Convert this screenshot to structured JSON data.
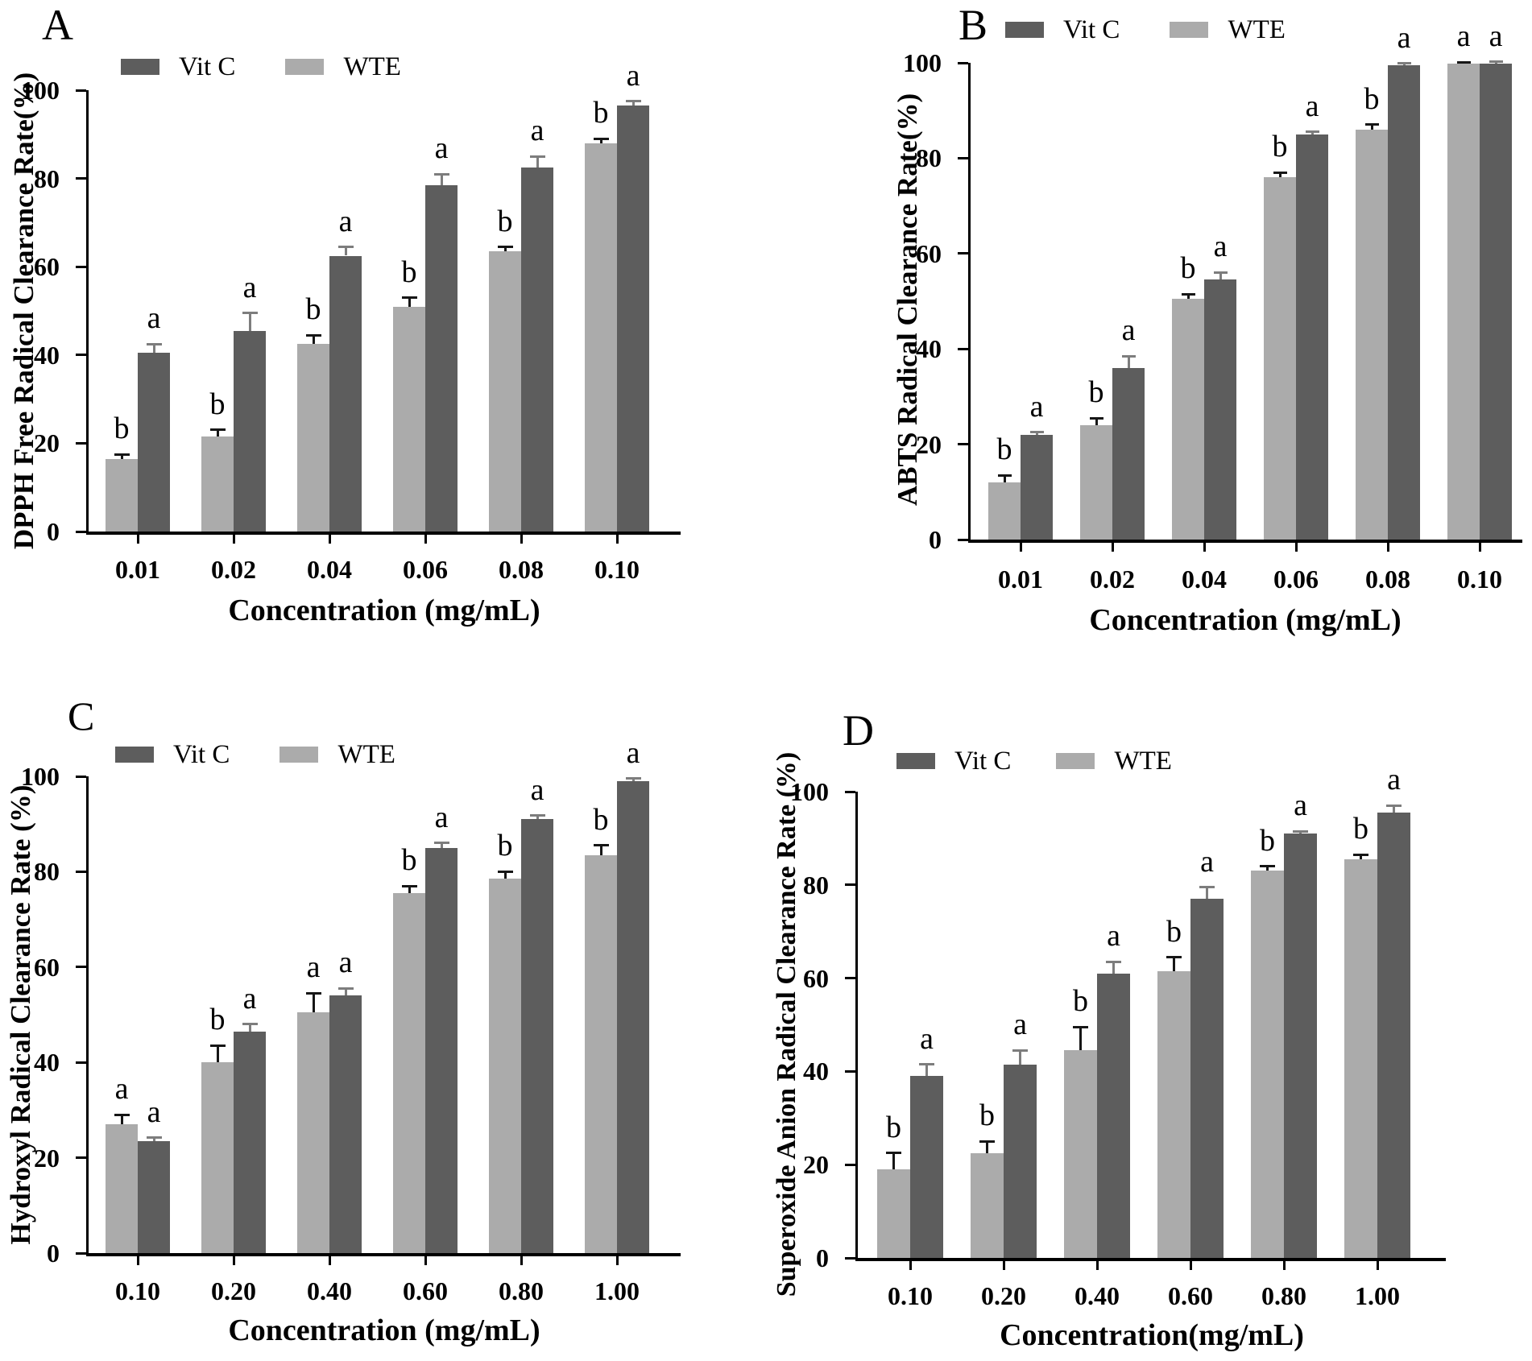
{
  "colors": {
    "vitc_bar": "#5d5d5d",
    "wte_bar": "#ababab",
    "vitc_error": "#7d7d7d",
    "wte_error": "#161616",
    "axis": "#000000",
    "background": "#ffffff"
  },
  "legend": {
    "vitc_label": "Vit C",
    "wte_label": "WTE",
    "position": "top"
  },
  "chart_data": [
    {
      "panel": "A",
      "type": "bar",
      "title_letter": "A",
      "ylabel": "DPPH Free Radical Clearance Rate(%)",
      "xlabel": "Concentration (mg/mL)",
      "categories": [
        "0.01",
        "0.02",
        "0.04",
        "0.06",
        "0.08",
        "0.10"
      ],
      "ylim": [
        0,
        100
      ],
      "yticks": [
        0,
        20,
        40,
        60,
        80,
        100
      ],
      "grid": "off",
      "series": [
        {
          "name": "WTE",
          "values": [
            16.5,
            21.5,
            42.5,
            51,
            63.5,
            88
          ],
          "errors": [
            1,
            1.5,
            2,
            2,
            1,
            1
          ],
          "sig_letters": [
            "b",
            "b",
            "b",
            "b",
            "b",
            "b"
          ]
        },
        {
          "name": "Vit C",
          "values": [
            40.5,
            45.5,
            62.5,
            78.5,
            82.5,
            96.5
          ],
          "errors": [
            2,
            4,
            2,
            2.5,
            2.5,
            1
          ],
          "sig_letters": [
            "a",
            "a",
            "a",
            "a",
            "a",
            "a"
          ]
        }
      ]
    },
    {
      "panel": "B",
      "type": "bar",
      "title_letter": "B",
      "ylabel": "ABTS Radical Clearance Rate(%)",
      "xlabel": "Concentration (mg/mL)",
      "categories": [
        "0.01",
        "0.02",
        "0.04",
        "0.06",
        "0.08",
        "0.10"
      ],
      "ylim": [
        0,
        100
      ],
      "yticks": [
        0,
        20,
        40,
        60,
        80,
        100
      ],
      "grid": "off",
      "series": [
        {
          "name": "WTE",
          "values": [
            12,
            24,
            50.5,
            76,
            86,
            99.8
          ],
          "errors": [
            1.5,
            1.5,
            1,
            1,
            1,
            0.3
          ],
          "sig_letters": [
            "b",
            "b",
            "b",
            "b",
            "b",
            "a"
          ]
        },
        {
          "name": "Vit C",
          "values": [
            22,
            36,
            54.5,
            85,
            99.5,
            99.9
          ],
          "errors": [
            0.5,
            2.5,
            1.5,
            0.5,
            0.4,
            0.3
          ],
          "sig_letters": [
            "a",
            "a",
            "a",
            "a",
            "a",
            "a"
          ]
        }
      ]
    },
    {
      "panel": "C",
      "type": "bar",
      "title_letter": "C",
      "ylabel": "Hydroxyl Radical Clearance Rate (%)",
      "xlabel": "Concentration (mg/mL)",
      "categories": [
        "0.10",
        "0.20",
        "0.40",
        "0.60",
        "0.80",
        "1.00"
      ],
      "ylim": [
        0,
        100
      ],
      "yticks": [
        0,
        20,
        40,
        60,
        80,
        100
      ],
      "grid": "off",
      "series": [
        {
          "name": "WTE",
          "values": [
            27,
            40,
            50.5,
            75.5,
            78.5,
            83.5
          ],
          "errors": [
            2,
            3.5,
            4,
            1.5,
            1.5,
            2
          ],
          "sig_letters": [
            "a",
            "b",
            "a",
            "b",
            "b",
            "b"
          ]
        },
        {
          "name": "Vit C",
          "values": [
            23.5,
            46.5,
            54,
            85,
            91,
            99
          ],
          "errors": [
            0.7,
            1.5,
            1.5,
            1,
            0.8,
            0.5
          ],
          "sig_letters": [
            "a",
            "a",
            "a",
            "a",
            "a",
            "a"
          ]
        }
      ]
    },
    {
      "panel": "D",
      "type": "bar",
      "title_letter": "D",
      "ylabel": "Superoxide Anion Radical Clearance Rate (%)",
      "xlabel": "Concentration(mg/mL)",
      "categories": [
        "0.10",
        "0.20",
        "0.40",
        "0.60",
        "0.80",
        "1.00"
      ],
      "ylim": [
        0,
        100
      ],
      "yticks": [
        0,
        20,
        40,
        60,
        80,
        100
      ],
      "grid": "off",
      "series": [
        {
          "name": "WTE",
          "values": [
            19,
            22.5,
            44.5,
            61.5,
            83,
            85.5
          ],
          "errors": [
            3.5,
            2.5,
            5,
            3,
            1,
            1
          ],
          "sig_letters": [
            "b",
            "b",
            "b",
            "b",
            "b",
            "b"
          ]
        },
        {
          "name": "Vit C",
          "values": [
            39,
            41.5,
            61,
            77,
            91,
            95.5
          ],
          "errors": [
            2.5,
            3,
            2.5,
            2.5,
            0.5,
            1.5
          ],
          "sig_letters": [
            "a",
            "a",
            "a",
            "a",
            "a",
            "a"
          ]
        }
      ]
    }
  ]
}
